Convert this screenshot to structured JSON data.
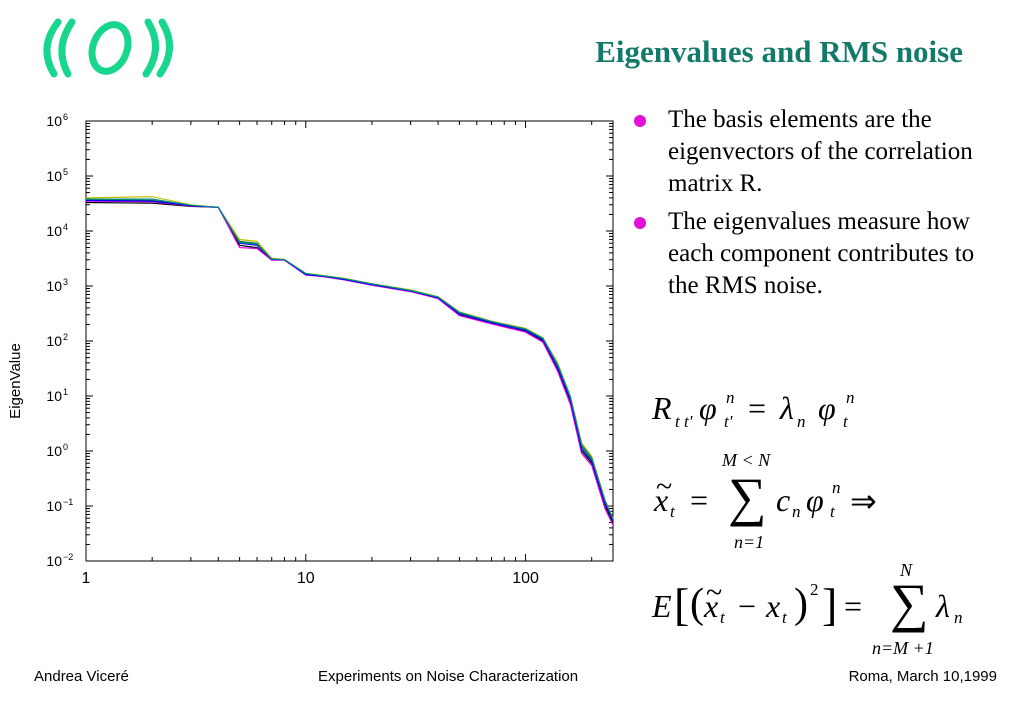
{
  "slide": {
    "title": "Eigenvalues and RMS noise",
    "bullets": [
      "The basis elements are the eigenvectors of the correlation matrix R.",
      "The eigenvalues measure how each component contributes to the RMS noise."
    ],
    "bullet_color": "#e010d8",
    "title_color": "#137a6a",
    "logo_color": "#19d68e"
  },
  "footer": {
    "author": "Andrea Viceré",
    "talk_title": "Experiments on Noise Characterization",
    "date_place": "Roma, March 10,1999"
  },
  "equations": {
    "eq1": {
      "R": "R",
      "R_sub": "t t'",
      "phi": "φ",
      "phi_sub": "t'",
      "n": "n",
      "eq": "=",
      "lambda": "λ",
      "lambda_sub": "n",
      "phi2_sub": "t"
    },
    "eq2": {
      "xt": "x",
      "tilde": "~",
      "t": "t",
      "eq": "=",
      "upper": "M < N",
      "sigma": "∑",
      "lower": "n=1",
      "c": "c",
      "n": "n",
      "phi": "φ",
      "arrow": "⇒"
    },
    "eq3": {
      "E": "E",
      "lbr": "[",
      "lparen": "(",
      "x": "x",
      "tilde": "~",
      "t": "t",
      "minus": "−",
      "rparen": ")",
      "sq": "2",
      "rbr": "]",
      "eq": "=",
      "upper": "N",
      "sigma": "∑",
      "lower": "n=M +1",
      "lambda": "λ",
      "n": "n"
    }
  },
  "chart_data": {
    "type": "line",
    "xlabel": "",
    "ylabel": "EigenValue",
    "x_scale": "log",
    "y_scale": "log",
    "xlim": [
      1,
      250
    ],
    "ylim": [
      0.01,
      1000000
    ],
    "x_ticks": [
      "1",
      "10",
      "100"
    ],
    "y_ticks": [
      {
        "base": "10",
        "exp": "6"
      },
      {
        "base": "10",
        "exp": "5"
      },
      {
        "base": "10",
        "exp": "4"
      },
      {
        "base": "10",
        "exp": "3"
      },
      {
        "base": "10",
        "exp": "2"
      },
      {
        "base": "10",
        "exp": "1"
      },
      {
        "base": "10",
        "exp": "0"
      },
      {
        "base": "10",
        "exp": "−1"
      },
      {
        "base": "10",
        "exp": "−2"
      }
    ],
    "grid": false,
    "legend": "none",
    "series": [
      {
        "color": "#000000",
        "x": [
          1,
          2,
          3,
          4,
          5,
          6,
          7,
          8,
          10,
          12,
          15,
          20,
          30,
          40,
          50,
          70,
          100,
          120,
          140,
          160,
          180,
          200,
          230,
          250
        ],
        "y": [
          33000,
          32000,
          28000,
          27000,
          5500,
          5000,
          3000,
          3000,
          1600,
          1500,
          1300,
          1050,
          800,
          600,
          300,
          210,
          150,
          100,
          30,
          8,
          1,
          0.6,
          0.1,
          0.05
        ]
      },
      {
        "color": "#1a7f2a",
        "x": [
          1,
          2,
          3,
          4,
          5,
          6,
          7,
          8,
          10,
          12,
          15,
          20,
          30,
          40,
          50,
          70,
          100,
          120,
          140,
          160,
          180,
          200,
          230,
          250
        ],
        "y": [
          37000,
          36000,
          29000,
          27000,
          6500,
          6000,
          3100,
          3000,
          1650,
          1520,
          1350,
          1080,
          820,
          620,
          320,
          220,
          160,
          110,
          35,
          9,
          1.2,
          0.7,
          0.12,
          0.06
        ]
      },
      {
        "color": "#c0c000",
        "x": [
          1,
          2,
          3,
          4,
          5,
          6,
          7,
          8,
          10,
          12,
          15,
          20,
          30,
          40,
          50,
          70,
          100,
          120,
          140,
          160,
          180,
          200,
          230,
          250
        ],
        "y": [
          40000,
          42000,
          30000,
          27000,
          7000,
          6500,
          3200,
          3050,
          1700,
          1550,
          1380,
          1100,
          850,
          640,
          340,
          230,
          170,
          115,
          40,
          10,
          1.4,
          0.8,
          0.13,
          0.06
        ]
      },
      {
        "color": "#e000e0",
        "x": [
          1,
          2,
          3,
          4,
          5,
          6,
          7,
          8,
          10,
          12,
          15,
          20,
          30,
          40,
          50,
          70,
          100,
          120,
          140,
          160,
          180,
          200,
          230,
          250
        ],
        "y": [
          35000,
          34000,
          28500,
          27000,
          5000,
          4800,
          2950,
          2950,
          1580,
          1480,
          1290,
          1030,
          790,
          590,
          290,
          205,
          145,
          95,
          28,
          7,
          0.9,
          0.55,
          0.09,
          0.045
        ]
      },
      {
        "color": "#0000ff",
        "x": [
          1,
          2,
          3,
          4,
          5,
          6,
          7,
          8,
          10,
          12,
          15,
          20,
          30,
          40,
          50,
          70,
          100,
          120,
          140,
          160,
          180,
          200,
          230,
          250
        ],
        "y": [
          36000,
          35000,
          28800,
          27000,
          6000,
          5500,
          3050,
          3000,
          1620,
          1500,
          1320,
          1060,
          810,
          610,
          310,
          215,
          155,
          105,
          32,
          8.5,
          1.1,
          0.65,
          0.11,
          0.055
        ]
      },
      {
        "color": "#008a8a",
        "x": [
          1,
          2,
          3,
          4,
          5,
          6,
          7,
          8,
          10,
          12,
          15,
          20,
          30,
          40,
          50,
          70,
          100,
          120,
          140,
          160,
          180,
          200,
          230,
          250
        ],
        "y": [
          38000,
          38000,
          29500,
          27000,
          6200,
          5800,
          3100,
          3020,
          1680,
          1530,
          1360,
          1090,
          830,
          630,
          330,
          225,
          165,
          112,
          37,
          9.5,
          1.3,
          0.75,
          0.125,
          0.058
        ]
      }
    ]
  }
}
